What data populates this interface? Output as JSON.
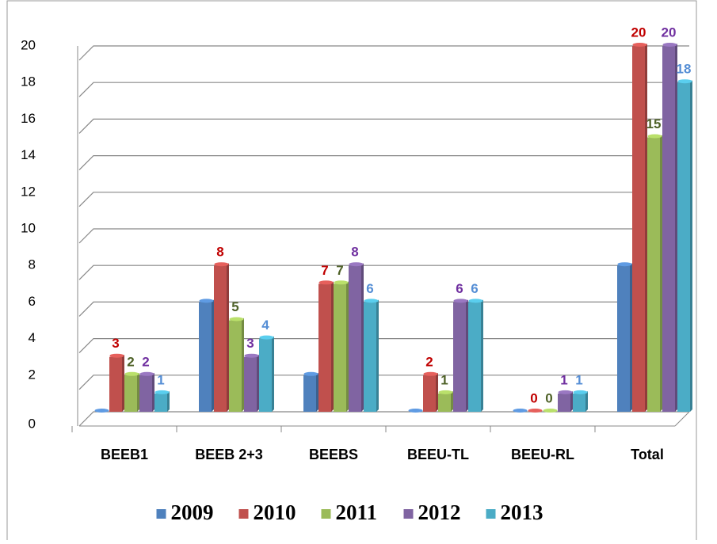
{
  "chart_data": {
    "type": "bar",
    "categories": [
      "BEEB1",
      "BEEB 2+3",
      "BEEBS",
      "BEEU-TL",
      "BEEU-RL",
      "Total"
    ],
    "series": [
      {
        "name": "2009",
        "color": "#4f81bd",
        "data_labels": false,
        "values": [
          0,
          6,
          2,
          0,
          0,
          8
        ]
      },
      {
        "name": "2010",
        "color": "#c0504d",
        "label_color": "#c00000",
        "data_labels": true,
        "values": [
          3,
          8,
          7,
          2,
          0,
          20
        ]
      },
      {
        "name": "2011",
        "color": "#9bbb59",
        "label_color": "#4f6228",
        "data_labels": true,
        "values": [
          2,
          5,
          7,
          1,
          0,
          15
        ]
      },
      {
        "name": "2012",
        "color": "#8064a2",
        "label_color": "#7030a0",
        "data_labels": true,
        "values": [
          2,
          3,
          8,
          6,
          1,
          20
        ]
      },
      {
        "name": "2013",
        "color": "#4bacc6",
        "label_color": "#558ed5",
        "data_labels": true,
        "values": [
          1,
          4,
          6,
          6,
          1,
          18
        ]
      }
    ],
    "ylim": [
      0,
      20
    ],
    "yticks": [
      0,
      2,
      4,
      6,
      8,
      10,
      12,
      14,
      16,
      18,
      20
    ],
    "grid": true,
    "legend": "bottom"
  }
}
